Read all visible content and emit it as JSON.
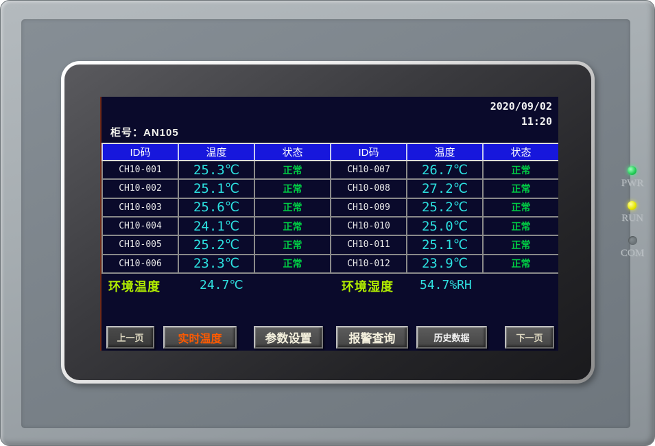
{
  "screen": {
    "date": "2020/09/02",
    "time": "11:20",
    "cabinet_label": "柜号：AN105",
    "table": {
      "headers": [
        "ID码",
        "温度",
        "状态",
        "ID码",
        "温度",
        "状态"
      ],
      "rows": [
        [
          "CH10-001",
          "25.3℃",
          "正常",
          "CH10-007",
          "26.7℃",
          "正常"
        ],
        [
          "CH10-002",
          "25.1℃",
          "正常",
          "CH10-008",
          "27.2℃",
          "正常"
        ],
        [
          "CH10-003",
          "25.6℃",
          "正常",
          "CH10-009",
          "25.2℃",
          "正常"
        ],
        [
          "CH10-004",
          "24.1℃",
          "正常",
          "CH10-010",
          "25.0℃",
          "正常"
        ],
        [
          "CH10-005",
          "25.2℃",
          "正常",
          "CH10-011",
          "25.1℃",
          "正常"
        ],
        [
          "CH10-006",
          "23.3℃",
          "正常",
          "CH10-012",
          "23.9℃",
          "正常"
        ]
      ]
    },
    "environment": {
      "temp_label": "环境温度",
      "temp_value": "24.7℃",
      "humidity_label": "环境湿度",
      "humidity_value": "54.7%RH"
    },
    "nav_buttons": {
      "prev": "上一页",
      "realtime": "实时温度",
      "params": "参数设置",
      "alarm": "报警查询",
      "history": "历史数据",
      "next": "下一页"
    }
  },
  "panel": {
    "leds": [
      {
        "label": "PWR",
        "state": "on",
        "color": "#22cc55"
      },
      {
        "label": "RUN",
        "state": "on",
        "color": "#e6e600"
      },
      {
        "label": "COM",
        "state": "off",
        "color": "#6a7276"
      }
    ]
  },
  "colors": {
    "screen_bg": "#0a0a2b",
    "header_blue": "#1717dc",
    "temp_cyan": "#2ce0e0",
    "status_green": "#00cc44",
    "env_label_green": "#b2ee00",
    "active_button_orange": "#ff5a00"
  }
}
